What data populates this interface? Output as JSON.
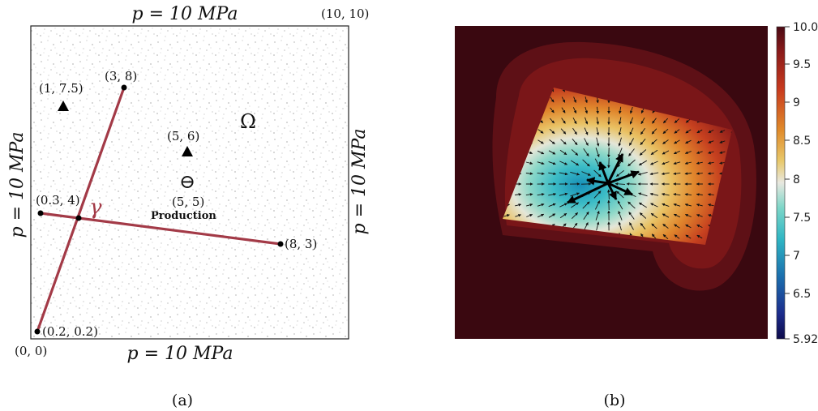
{
  "panel_a": {
    "caption": "(a)",
    "boundary_top": "p = 10 MPa",
    "boundary_bottom": "p = 10 MPa",
    "boundary_left": "p = 10 MPa",
    "boundary_right": "p = 10 MPa",
    "corner_top_right": "(10, 10)",
    "corner_bottom_left": "(0, 0)",
    "domain_symbol": "Ω",
    "fracture_symbol": "γ",
    "production_symbol": "⊖",
    "production_label": "Production",
    "points": [
      {
        "label": "(3, 8)"
      },
      {
        "label": "(0.3, 4)"
      },
      {
        "label": "(8, 3)"
      },
      {
        "label": "(0.2, 0.2)"
      },
      {
        "label": "(5, 5)"
      }
    ],
    "markers": [
      {
        "label": "(1, 7.5)"
      },
      {
        "label": "(5, 6)"
      }
    ],
    "fracture_color": "#a33a47"
  },
  "panel_b": {
    "caption": "(b)",
    "colorbar_ticks": [
      "10.0",
      "9.5",
      "9",
      "8.5",
      "8",
      "7.5",
      "7",
      "6.5",
      "5.92"
    ],
    "colorbar_min": 5.92,
    "colorbar_max": 10.0
  }
}
